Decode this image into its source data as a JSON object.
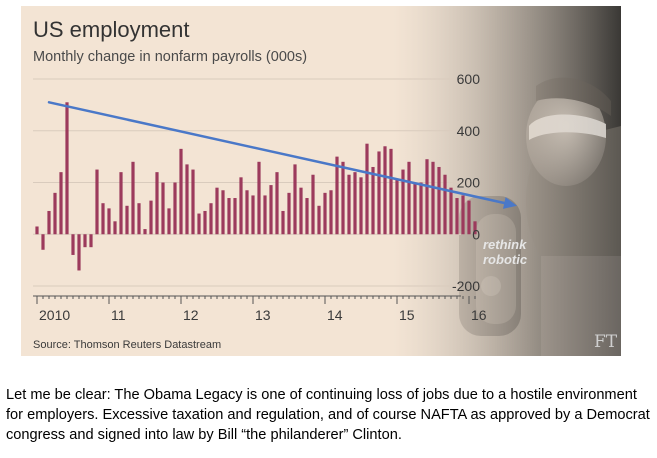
{
  "chart_data": {
    "type": "bar",
    "title": "US employment",
    "subtitle": "Monthly change in nonfarm payrolls (000s)",
    "source": "Source: Thomson Reuters Datastream",
    "brand": "FT",
    "photo_text": [
      "rethink",
      "robotic"
    ],
    "ylim": [
      -200,
      600
    ],
    "yticks": [
      -200,
      0,
      200,
      400,
      600
    ],
    "ytick_labels": [
      "-200",
      "0",
      "200",
      "400",
      "600"
    ],
    "grid": true,
    "xtick_labels": [
      {
        "label": "2010",
        "index": 0
      },
      {
        "label": "11",
        "index": 12
      },
      {
        "label": "12",
        "index": 24
      },
      {
        "label": "13",
        "index": 36
      },
      {
        "label": "14",
        "index": 48
      },
      {
        "label": "15",
        "index": 60
      },
      {
        "label": "16",
        "index": 72
      }
    ],
    "x_start": "2010-01",
    "values": [
      30,
      -60,
      90,
      160,
      240,
      510,
      -80,
      -140,
      -50,
      -50,
      250,
      120,
      100,
      50,
      240,
      110,
      280,
      120,
      20,
      130,
      240,
      200,
      100,
      200,
      330,
      270,
      250,
      80,
      90,
      120,
      180,
      170,
      140,
      140,
      220,
      170,
      150,
      280,
      150,
      190,
      240,
      90,
      160,
      270,
      180,
      140,
      230,
      110,
      160,
      170,
      300,
      280,
      230,
      240,
      220,
      350,
      260,
      320,
      340,
      330,
      210,
      250,
      280,
      200,
      200,
      290,
      280,
      260,
      230,
      180,
      140,
      150,
      130,
      50
    ],
    "trend_line": {
      "color": "#4a78c8",
      "start": {
        "month": "2010-03",
        "value": 510
      },
      "end": {
        "month": "2016-09",
        "value": 110
      }
    },
    "bar_color": "#9c3a5c"
  },
  "caption": "Let me be clear:  The Obama Legacy is one of continuing loss of jobs due to a hostile environment for employers.  Excessive taxation and regulation, and of course NAFTA as approved by a Democrat congress and signed into law by Bill “the philanderer” Clinton."
}
